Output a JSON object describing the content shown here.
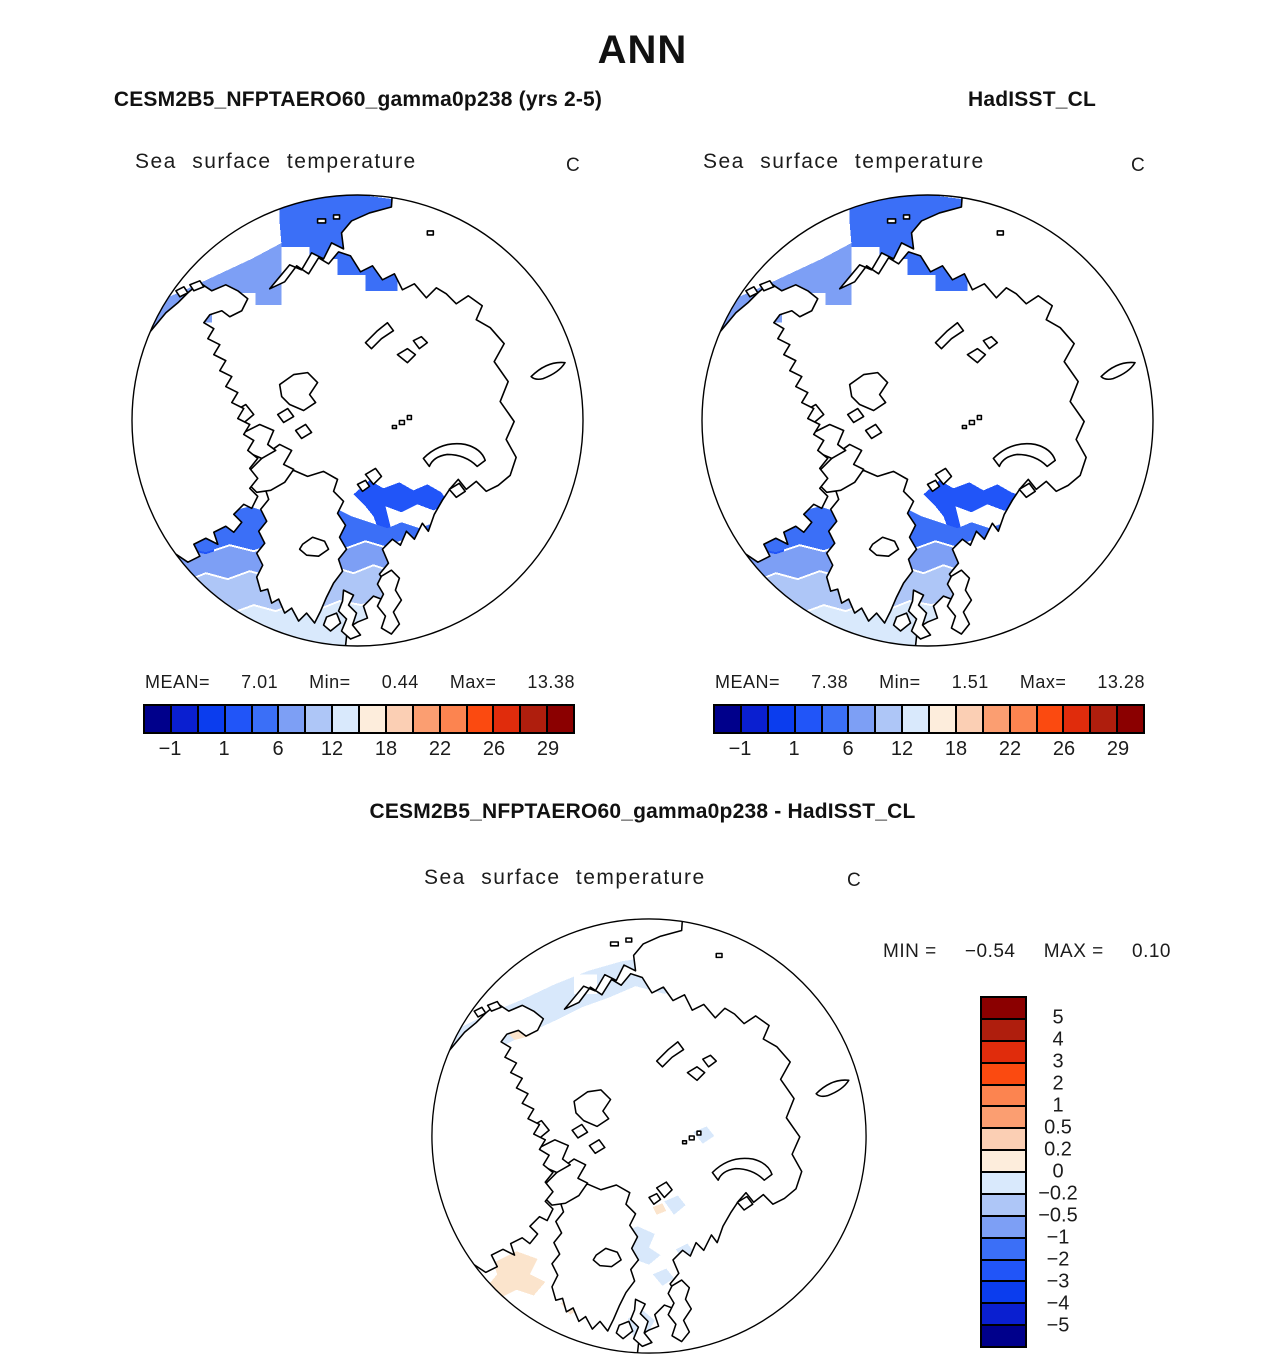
{
  "figure": {
    "title": "ANN"
  },
  "palette": [
    "#00008B",
    "#0A1FD0",
    "#0B3DEE",
    "#2155F8",
    "#3B6FF7",
    "#7D9FF5",
    "#AEC6F7",
    "#D9E9FC",
    "#FDEDDC",
    "#FBCFB4",
    "#FB9E71",
    "#FC8450",
    "#FB4A10",
    "#E02C0C",
    "#AF1E0D",
    "#8B0000"
  ],
  "palette_reversed": [
    "#8B0000",
    "#AF1E0D",
    "#E02C0C",
    "#FB4A10",
    "#FC8450",
    "#FB9E71",
    "#FBCFB4",
    "#FDEDDC",
    "#D9E9FC",
    "#AEC6F7",
    "#7D9FF5",
    "#3B6FF7",
    "#2155F8",
    "#0B3DEE",
    "#0A1FD0",
    "#00008B"
  ],
  "map_colors": {
    "blue_dark": "#2155F8",
    "blue_core": "#3B6FF7",
    "blue_light": "#7D9FF5",
    "blue_pale": "#AEC6F7",
    "blue_faint": "#D9E9FC",
    "diff_blue": "#D8E8FB",
    "diff_blue_med": "#AEC6F7",
    "diff_peach": "#FBE4CC",
    "white": "#FFFFFF"
  },
  "panels": {
    "model": {
      "header": "CESM2B5_NFPTAERO60_gamma0p238 (yrs 2-5)",
      "subtitle": "Sea surface temperature",
      "units": "C",
      "stats": {
        "mean_label": "MEAN=",
        "mean": "7.01",
        "min_label": "Min=",
        "min": "0.44",
        "max_label": "Max=",
        "max": "13.38"
      },
      "colorbar": {
        "ticks": [
          "−1",
          "1",
          "6",
          "12",
          "18",
          "22",
          "26",
          "29"
        ]
      }
    },
    "obs": {
      "header": "HadISST_CL",
      "subtitle": "Sea surface temperature",
      "units": "C",
      "stats": {
        "mean_label": "MEAN=",
        "mean": "7.38",
        "min_label": "Min=",
        "min": "1.51",
        "max_label": "Max=",
        "max": "13.28"
      },
      "colorbar": {
        "ticks": [
          "−1",
          "1",
          "6",
          "12",
          "18",
          "22",
          "26",
          "29"
        ]
      }
    },
    "diff": {
      "header": "CESM2B5_NFPTAERO60_gamma0p238 - HadISST_CL",
      "subtitle": "Sea surface temperature",
      "units": "C",
      "stats": {
        "min_label": "MIN =",
        "min": "−0.54",
        "max_label": "MAX =",
        "max": "0.10"
      },
      "colorbar": {
        "ticks": [
          "5",
          "4",
          "3",
          "2",
          "1",
          "0.5",
          "0.2",
          "0",
          "−0.2",
          "−0.5",
          "−1",
          "−2",
          "−3",
          "−4",
          "−5"
        ]
      }
    }
  }
}
